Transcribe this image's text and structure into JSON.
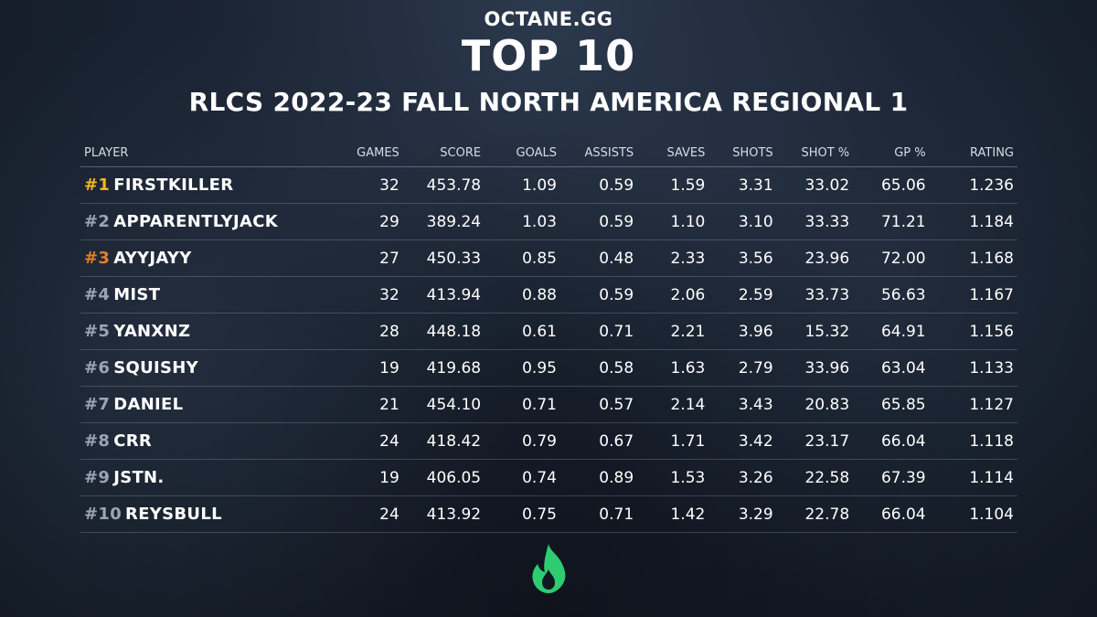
{
  "header": {
    "brand": "OCTANE.GG",
    "title": "TOP 10",
    "subtitle": "RLCS 2022-23 FALL NORTH AMERICA REGIONAL 1"
  },
  "table": {
    "columns": [
      "PLAYER",
      "GAMES",
      "SCORE",
      "GOALS",
      "ASSISTS",
      "SAVES",
      "SHOTS",
      "SHOT %",
      "GP %",
      "RATING"
    ],
    "rows": [
      {
        "rank": "#1",
        "name": "FIRSTKILLER",
        "games": "32",
        "score": "453.78",
        "goals": "1.09",
        "assists": "0.59",
        "saves": "1.59",
        "shots": "3.31",
        "shot_pct": "33.02",
        "gp_pct": "65.06",
        "rating": "1.236"
      },
      {
        "rank": "#2",
        "name": "APPARENTLYJACK",
        "games": "29",
        "score": "389.24",
        "goals": "1.03",
        "assists": "0.59",
        "saves": "1.10",
        "shots": "3.10",
        "shot_pct": "33.33",
        "gp_pct": "71.21",
        "rating": "1.184"
      },
      {
        "rank": "#3",
        "name": "AYYJAYY",
        "games": "27",
        "score": "450.33",
        "goals": "0.85",
        "assists": "0.48",
        "saves": "2.33",
        "shots": "3.56",
        "shot_pct": "23.96",
        "gp_pct": "72.00",
        "rating": "1.168"
      },
      {
        "rank": "#4",
        "name": "MIST",
        "games": "32",
        "score": "413.94",
        "goals": "0.88",
        "assists": "0.59",
        "saves": "2.06",
        "shots": "2.59",
        "shot_pct": "33.73",
        "gp_pct": "56.63",
        "rating": "1.167"
      },
      {
        "rank": "#5",
        "name": "YANXNZ",
        "games": "28",
        "score": "448.18",
        "goals": "0.61",
        "assists": "0.71",
        "saves": "2.21",
        "shots": "3.96",
        "shot_pct": "15.32",
        "gp_pct": "64.91",
        "rating": "1.156"
      },
      {
        "rank": "#6",
        "name": "SQUISHY",
        "games": "19",
        "score": "419.68",
        "goals": "0.95",
        "assists": "0.58",
        "saves": "1.63",
        "shots": "2.79",
        "shot_pct": "33.96",
        "gp_pct": "63.04",
        "rating": "1.133"
      },
      {
        "rank": "#7",
        "name": "DANIEL",
        "games": "21",
        "score": "454.10",
        "goals": "0.71",
        "assists": "0.57",
        "saves": "2.14",
        "shots": "3.43",
        "shot_pct": "20.83",
        "gp_pct": "65.85",
        "rating": "1.127"
      },
      {
        "rank": "#8",
        "name": "CRR",
        "games": "24",
        "score": "418.42",
        "goals": "0.79",
        "assists": "0.67",
        "saves": "1.71",
        "shots": "3.42",
        "shot_pct": "23.17",
        "gp_pct": "66.04",
        "rating": "1.118"
      },
      {
        "rank": "#9",
        "name": "JSTN.",
        "games": "19",
        "score": "406.05",
        "goals": "0.74",
        "assists": "0.89",
        "saves": "1.53",
        "shots": "3.26",
        "shot_pct": "22.58",
        "gp_pct": "67.39",
        "rating": "1.114"
      },
      {
        "rank": "#10",
        "name": "REYSBULL",
        "games": "24",
        "score": "413.92",
        "goals": "0.75",
        "assists": "0.71",
        "saves": "1.42",
        "shots": "3.29",
        "shot_pct": "22.78",
        "gp_pct": "66.04",
        "rating": "1.104"
      }
    ]
  },
  "colors": {
    "background": "#1a2332",
    "rank_gold": "#f2b721",
    "rank_bronze": "#e07f2b",
    "rank_default": "#9aa4b4",
    "logo_green": "#2ecc71"
  },
  "logo": {
    "icon": "flame-icon"
  }
}
